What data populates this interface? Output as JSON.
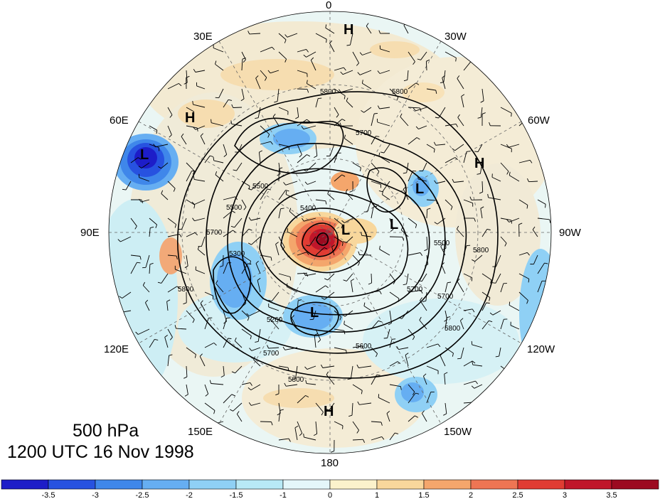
{
  "map": {
    "level_label": "500 hPa",
    "time_label": "1200 UTC 16 Nov 1998",
    "longitude_labels": [
      {
        "id": "lon-0",
        "text": "0"
      },
      {
        "id": "lon-30e",
        "text": "30E"
      },
      {
        "id": "lon-30w",
        "text": "30W"
      },
      {
        "id": "lon-60e",
        "text": "60E"
      },
      {
        "id": "lon-60w",
        "text": "60W"
      },
      {
        "id": "lon-90e",
        "text": "90E"
      },
      {
        "id": "lon-90w",
        "text": "90W"
      },
      {
        "id": "lon-120e",
        "text": "120E"
      },
      {
        "id": "lon-120w",
        "text": "120W"
      },
      {
        "id": "lon-150e",
        "text": "150E"
      },
      {
        "id": "lon-150w",
        "text": "150W"
      },
      {
        "id": "lon-180",
        "text": "180"
      }
    ],
    "pressure_centers": [
      {
        "type": "H"
      },
      {
        "type": "H"
      },
      {
        "type": "H"
      },
      {
        "type": "H"
      },
      {
        "type": "L"
      },
      {
        "type": "L"
      },
      {
        "type": "L"
      },
      {
        "type": "L"
      },
      {
        "type": "L"
      }
    ],
    "contour_labels": [
      "5800",
      "5800",
      "5700",
      "5700",
      "5500",
      "5500",
      "5400",
      "5800",
      "5700",
      "5800",
      "5700",
      "5500",
      "5300",
      "5260",
      "5700",
      "5800",
      "5600",
      "5800"
    ],
    "colors": {
      "ocean_light": "#e6f7fb",
      "land_tan": "#f3ead2",
      "positive_peak": "#b20f1c",
      "negative_peak": "#1f2ac6"
    }
  },
  "colorbar": {
    "tick_labels": [
      "-3.5",
      "-3",
      "-2.5",
      "-2",
      "-1.5",
      "-1",
      "0",
      "1",
      "1.5",
      "2",
      "2.5",
      "3",
      "3.5"
    ],
    "colors": [
      "#1d1dc8",
      "#2752e0",
      "#3f87ea",
      "#66aef2",
      "#8fd0f5",
      "#b8e9f6",
      "#e4f6fa",
      "#fbf2cc",
      "#f8d79c",
      "#f4a66c",
      "#ee7553",
      "#e03c33",
      "#c0162a",
      "#9c0a20"
    ]
  }
}
